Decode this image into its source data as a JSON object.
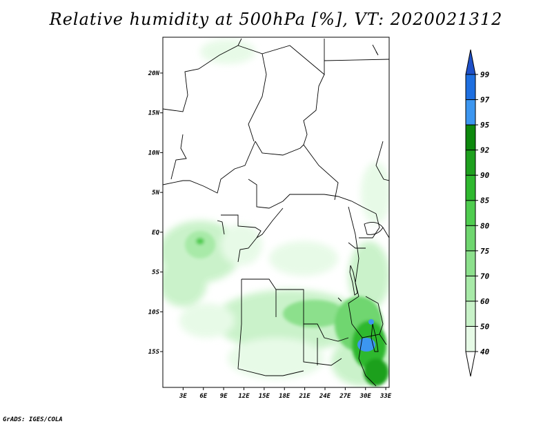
{
  "title": "Relative humidity at 500hPa [%], VT: 2020021312",
  "credit": "GrADS: IGES/COLA",
  "map": {
    "lat_range": [
      -19.5,
      24.5
    ],
    "lon_range": [
      0,
      33.5
    ],
    "lat_ticks": [
      {
        "value": 20,
        "label": "20N"
      },
      {
        "value": 15,
        "label": "15N"
      },
      {
        "value": 10,
        "label": "10N"
      },
      {
        "value": 5,
        "label": "5N"
      },
      {
        "value": 0,
        "label": "EQ"
      },
      {
        "value": -5,
        "label": "5S"
      },
      {
        "value": -10,
        "label": "10S"
      },
      {
        "value": -15,
        "label": "15S"
      }
    ],
    "lon_ticks": [
      {
        "value": 3,
        "label": "3E"
      },
      {
        "value": 6,
        "label": "6E"
      },
      {
        "value": 9,
        "label": "9E"
      },
      {
        "value": 12,
        "label": "12E"
      },
      {
        "value": 15,
        "label": "15E"
      },
      {
        "value": 18,
        "label": "18E"
      },
      {
        "value": 21,
        "label": "21E"
      },
      {
        "value": 24,
        "label": "24E"
      },
      {
        "value": 27,
        "label": "27E"
      },
      {
        "value": 30,
        "label": "30E"
      },
      {
        "value": 33,
        "label": "33E"
      }
    ]
  },
  "colorbar": {
    "levels": [
      "40",
      "50",
      "60",
      "70",
      "75",
      "80",
      "85",
      "90",
      "92",
      "95",
      "97",
      "99"
    ],
    "colors": [
      "#ffffff",
      "#e6fae6",
      "#c8f2c8",
      "#a8eaa8",
      "#8ce08c",
      "#6fd66f",
      "#4fcc4f",
      "#2fb82f",
      "#1ea01e",
      "#0d880d",
      "#3c96f0",
      "#1e6fe0",
      "#1e50c8"
    ]
  }
}
